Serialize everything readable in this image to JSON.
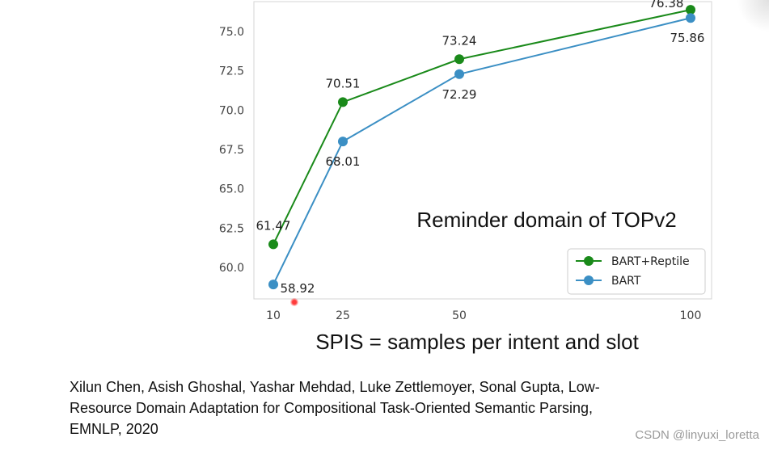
{
  "chart_data": {
    "type": "line",
    "x": [
      10,
      25,
      50,
      100
    ],
    "xticks": [
      "10",
      "25",
      "50",
      "100"
    ],
    "yticks": [
      "60.0",
      "62.5",
      "65.0",
      "67.5",
      "70.0",
      "72.5",
      "75.0"
    ],
    "ylim": [
      58.0,
      76.9
    ],
    "xlabel": "SPIS = samples per intent and slot",
    "ylabel": "",
    "title": "",
    "annotation": "Reminder domain of TOPv2",
    "legend_position": "lower-right",
    "grid": false,
    "series": [
      {
        "name": "BART+Reptile",
        "color": "#1a8a1a",
        "values": [
          61.47,
          70.51,
          73.24,
          76.38
        ],
        "labels": [
          "61.47",
          "70.51",
          "73.24",
          "76.38"
        ]
      },
      {
        "name": "BART",
        "color": "#3b8fc4",
        "values": [
          58.92,
          68.01,
          72.29,
          75.86
        ],
        "labels": [
          "58.92",
          "68.01",
          "72.29",
          "75.86"
        ]
      }
    ]
  },
  "citation": {
    "line1": "Xilun Chen, Asish Ghoshal, Yashar Mehdad, Luke Zettlemoyer, Sonal Gupta, Low-",
    "line2": "Resource Domain Adaptation for Compositional Task-Oriented Semantic Parsing,",
    "line3": "EMNLP, 2020"
  },
  "watermark": "CSDN @linyuxi_loretta"
}
